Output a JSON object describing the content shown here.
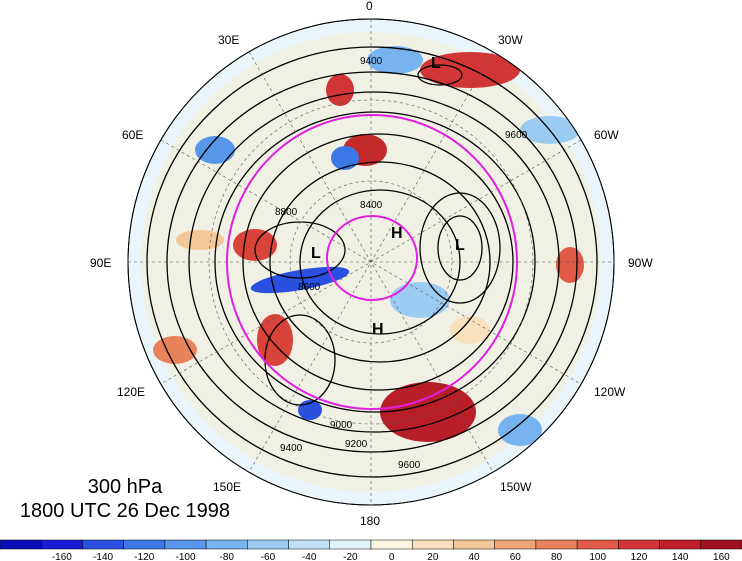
{
  "title": {
    "level": "300 hPa",
    "time": "1800 UTC 26 Dec 1998"
  },
  "projection": "north-polar-stereographic",
  "longitude_labels": [
    "0",
    "30W",
    "60W",
    "90W",
    "120W",
    "150W",
    "180",
    "150E",
    "120E",
    "90E",
    "60E",
    "30E"
  ],
  "contour_labels": [
    "9400",
    "9600",
    "8400",
    "8800",
    "9000",
    "9200",
    "8600"
  ],
  "pressure_centers": [
    {
      "label": "L",
      "name": "low-north-atlantic"
    },
    {
      "label": "H",
      "name": "high-arctic"
    },
    {
      "label": "L",
      "name": "low-siberia"
    },
    {
      "label": "L",
      "name": "low-canada"
    },
    {
      "label": "H",
      "name": "high-bering"
    }
  ],
  "colorbar": {
    "labels": [
      "-160",
      "-140",
      "-120",
      "-100",
      "-80",
      "-60",
      "-40",
      "-20",
      "0",
      "20",
      "40",
      "60",
      "80",
      "100",
      "120",
      "140",
      "160"
    ],
    "colors": [
      "#1a1ad6",
      "#2950e0",
      "#3b78e6",
      "#5896ea",
      "#77b3ef",
      "#9ccbf2",
      "#bfe0f5",
      "#e2f3fa",
      "#fbf5e1",
      "#f7e0bb",
      "#f3c898",
      "#eea676",
      "#e8825a",
      "#e05a45",
      "#d13535",
      "#bf1e2a",
      "#9f1020"
    ]
  },
  "colors": {
    "jet_circle": "#e01fe0",
    "contour": "#000000"
  }
}
